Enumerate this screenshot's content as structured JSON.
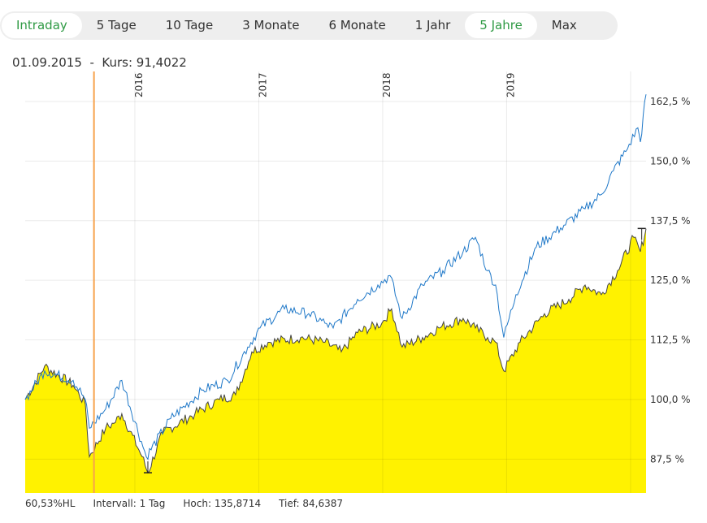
{
  "tabs": [
    {
      "label": "Intraday",
      "active": true
    },
    {
      "label": "5 Tage"
    },
    {
      "label": "10 Tage"
    },
    {
      "label": "3 Monate"
    },
    {
      "label": "6 Monate"
    },
    {
      "label": "1 Jahr"
    },
    {
      "label": "5 Jahre",
      "active": true
    },
    {
      "label": "Max"
    }
  ],
  "info": {
    "date": "01.09.2015",
    "separator": "-",
    "kurs": "Kurs: 91,4022"
  },
  "footer": {
    "hl": "60,53%HL",
    "interval": "Intervall: 1 Tag",
    "high": "Hoch: 135,8714",
    "low": "Tief: 84,6387"
  },
  "colors": {
    "area": "#fff200",
    "area_line": "#444444",
    "compare_line": "#1f78c8",
    "cursor": "#f7a24b",
    "accent": "#2f9a44"
  },
  "chart_data": {
    "type": "area",
    "xlim": [
      2015.115,
      2020.125
    ],
    "ylim": [
      80.4,
      168.8
    ],
    "x_ticks": [
      {
        "value": 2016,
        "label": "2016"
      },
      {
        "value": 2017,
        "label": "2017"
      },
      {
        "value": 2018,
        "label": "2018"
      },
      {
        "value": 2019,
        "label": "2019"
      },
      {
        "value": 2020,
        "label": ""
      }
    ],
    "y_ticks": [
      {
        "value": 87.5,
        "label": "87,5 %"
      },
      {
        "value": 100,
        "label": "100,0 %"
      },
      {
        "value": 112.5,
        "label": "112,5 %"
      },
      {
        "value": 125,
        "label": "125,0 %"
      },
      {
        "value": 137.5,
        "label": "137,5 %"
      },
      {
        "value": 150,
        "label": "150,0 %"
      },
      {
        "value": 162.5,
        "label": "162,5 %"
      }
    ],
    "cursor_x": 2015.67,
    "high": {
      "x": 2020.09,
      "value": 135.87
    },
    "low": {
      "x": 2016.105,
      "value": 84.64
    },
    "series": [
      {
        "name": "main",
        "type": "area",
        "points": [
          [
            2015.115,
            100
          ],
          [
            2015.272,
            107
          ],
          [
            2015.502,
            103
          ],
          [
            2015.6,
            99
          ],
          [
            2015.633,
            88
          ],
          [
            2015.764,
            94
          ],
          [
            2015.83,
            95
          ],
          [
            2015.895,
            97
          ],
          [
            2016.059,
            88
          ],
          [
            2016.105,
            84.6
          ],
          [
            2016.223,
            93
          ],
          [
            2016.485,
            97
          ],
          [
            2016.682,
            100
          ],
          [
            2016.813,
            101
          ],
          [
            2016.944,
            110
          ],
          [
            2017.075,
            112
          ],
          [
            2017.338,
            113
          ],
          [
            2017.534,
            112
          ],
          [
            2017.666,
            110
          ],
          [
            2017.797,
            114
          ],
          [
            2017.993,
            116
          ],
          [
            2018.072,
            119
          ],
          [
            2018.157,
            111
          ],
          [
            2018.321,
            113
          ],
          [
            2018.452,
            115
          ],
          [
            2018.649,
            117
          ],
          [
            2018.748,
            115
          ],
          [
            2018.846,
            113
          ],
          [
            2018.911,
            112
          ],
          [
            2018.977,
            106
          ],
          [
            2019.108,
            112
          ],
          [
            2019.305,
            118
          ],
          [
            2019.502,
            121
          ],
          [
            2019.633,
            124
          ],
          [
            2019.764,
            122
          ],
          [
            2019.895,
            127
          ],
          [
            2020.026,
            134
          ],
          [
            2020.079,
            131
          ],
          [
            2020.125,
            135.8
          ]
        ]
      },
      {
        "name": "compare",
        "type": "line",
        "points": [
          [
            2015.115,
            100
          ],
          [
            2015.272,
            106
          ],
          [
            2015.502,
            104
          ],
          [
            2015.6,
            100
          ],
          [
            2015.633,
            94
          ],
          [
            2015.764,
            98
          ],
          [
            2015.895,
            104
          ],
          [
            2016.092,
            88
          ],
          [
            2016.289,
            96
          ],
          [
            2016.551,
            102
          ],
          [
            2016.748,
            104
          ],
          [
            2016.911,
            111
          ],
          [
            2017.01,
            115
          ],
          [
            2017.207,
            119
          ],
          [
            2017.403,
            118
          ],
          [
            2017.534,
            116
          ],
          [
            2017.6,
            115
          ],
          [
            2017.797,
            121
          ],
          [
            2017.961,
            124
          ],
          [
            2018.059,
            126
          ],
          [
            2018.157,
            117
          ],
          [
            2018.321,
            124
          ],
          [
            2018.485,
            127
          ],
          [
            2018.649,
            131
          ],
          [
            2018.748,
            134
          ],
          [
            2018.846,
            127
          ],
          [
            2018.911,
            124
          ],
          [
            2018.977,
            113
          ],
          [
            2019.075,
            122
          ],
          [
            2019.239,
            132
          ],
          [
            2019.436,
            136
          ],
          [
            2019.633,
            140
          ],
          [
            2019.764,
            143
          ],
          [
            2019.862,
            148
          ],
          [
            2019.961,
            152
          ],
          [
            2020.059,
            157
          ],
          [
            2020.079,
            154
          ],
          [
            2020.125,
            164
          ]
        ]
      }
    ]
  }
}
